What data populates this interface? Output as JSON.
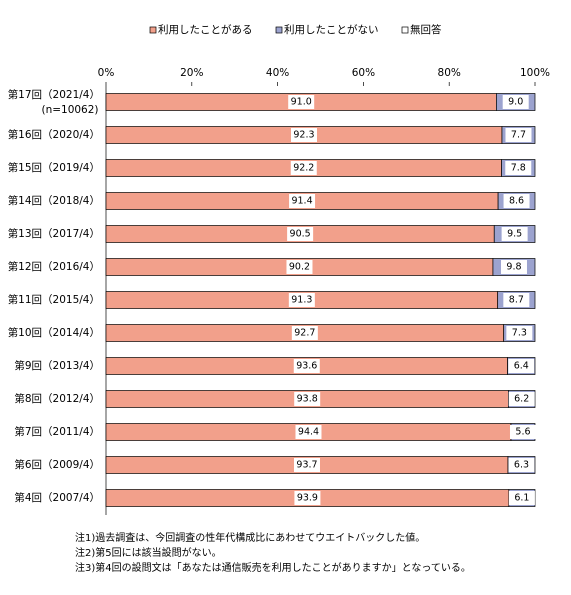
{
  "chart_data": {
    "type": "stacked-barh",
    "categories": [
      "第17回（2021/4）",
      "第16回（2020/4）",
      "第15回（2019/4）",
      "第14回（2018/4）",
      "第13回（2017/4）",
      "第12回（2016/4）",
      "第11回（2015/4）",
      "第10回（2014/4）",
      "第9回（2013/4）",
      "第8回（2012/4）",
      "第7回（2011/4）",
      "第6回（2009/4）",
      "第4回（2007/4）"
    ],
    "n_label": "(n=10062)",
    "series": [
      {
        "name": "利用したことがある",
        "color": "#f2a08b",
        "values": [
          91.0,
          92.3,
          92.2,
          91.4,
          90.5,
          90.2,
          91.3,
          92.7,
          93.6,
          93.8,
          94.4,
          93.7,
          93.9
        ],
        "value_labels": [
          "91.0",
          "92.3",
          "92.2",
          "91.4",
          "90.5",
          "90.2",
          "91.3",
          "92.7",
          "93.6",
          "93.8",
          "94.4",
          "93.7",
          "93.9"
        ]
      },
      {
        "name": "利用したことがない",
        "color": "#9ca3cf",
        "values": [
          9.0,
          7.7,
          7.8,
          8.6,
          9.5,
          9.8,
          8.7,
          7.3,
          6.4,
          6.2,
          5.6,
          6.3,
          6.1
        ],
        "value_labels": [
          "9.0",
          "7.7",
          "7.8",
          "8.6",
          "9.5",
          "9.8",
          "8.7",
          "7.3",
          "6.4",
          "6.2",
          "5.6",
          "6.3",
          "6.1"
        ]
      },
      {
        "name": "無回答",
        "color": "#ffffff",
        "values": [
          0,
          0,
          0,
          0,
          0,
          0,
          0,
          0,
          0,
          0,
          0,
          0,
          0
        ]
      }
    ],
    "xlim": [
      0,
      100
    ],
    "xticks": [
      {
        "value": 0,
        "label": "0%"
      },
      {
        "value": 20,
        "label": "20%"
      },
      {
        "value": 40,
        "label": "40%"
      },
      {
        "value": 60,
        "label": "60%"
      },
      {
        "value": 80,
        "label": "80%"
      },
      {
        "value": 100,
        "label": "100%"
      }
    ],
    "notes": [
      "注1)過去調査は、今回調査の性年代構成比にあわせてウエイトバックした値。",
      "注2)第5回には該当設問がない。",
      "注3)第4回の設問文は「あなたは通信販売を利用したことがありますか」となっている。"
    ]
  }
}
